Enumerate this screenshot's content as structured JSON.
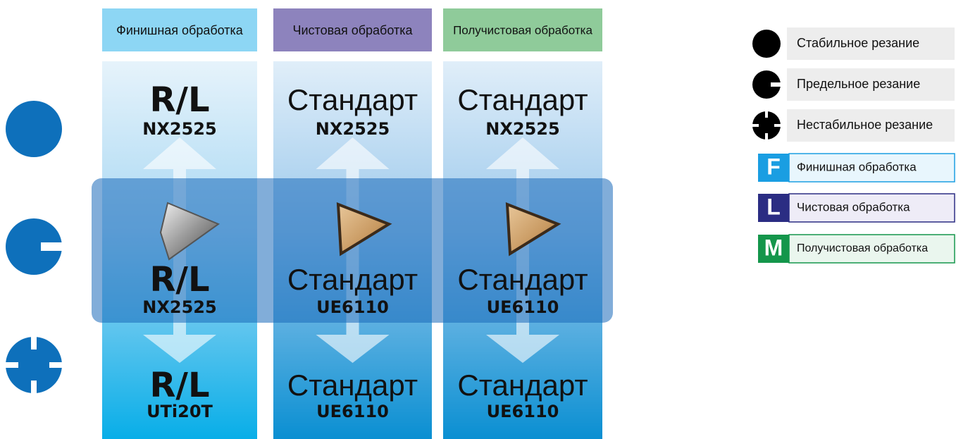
{
  "columns": [
    {
      "header": "Финишная обработка",
      "cells": [
        {
          "grade": "R/L",
          "code": "NX2525"
        },
        {
          "grade": "R/L",
          "code": "NX2525"
        },
        {
          "grade": "R/L",
          "code": "UTi20T"
        }
      ]
    },
    {
      "header": "Чистовая обработка",
      "cells": [
        {
          "grade": "Стандарт",
          "code": "NX2525"
        },
        {
          "grade": "Стандарт",
          "code": "UE6110"
        },
        {
          "grade": "Стандарт",
          "code": "UE6110"
        }
      ]
    },
    {
      "header": "Получистовая обработка",
      "cells": [
        {
          "grade": "Стандарт",
          "code": "NX2525"
        },
        {
          "grade": "Стандарт",
          "code": "UE6110"
        },
        {
          "grade": "Стандарт",
          "code": "UE6110"
        }
      ]
    }
  ],
  "legend": {
    "conditions": [
      "Стабильное резание",
      "Предельное резание",
      "Нестабильное резание"
    ],
    "modes": [
      {
        "letter": "F",
        "label": "Финишная обработка"
      },
      {
        "letter": "L",
        "label": "Чистовая обработка"
      },
      {
        "letter": "M",
        "label": "Получистовая обработка"
      }
    ]
  }
}
